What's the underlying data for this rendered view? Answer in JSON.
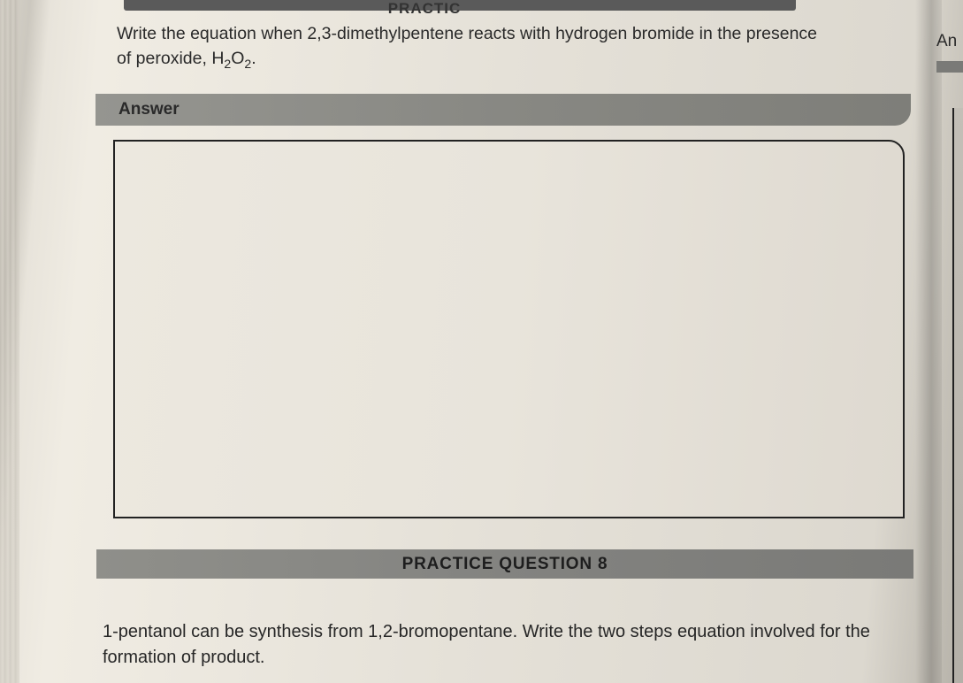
{
  "top_partial_label": "PRACTIC",
  "question7": {
    "line1": "Write the equation when 2,3-dimethylpentene reacts with hydrogen bromide in the presence",
    "line2_prefix": "of peroxide, H",
    "line2_sub1": "2",
    "line2_mid": "O",
    "line2_sub2": "2",
    "line2_suffix": "."
  },
  "answer_label": "Answer",
  "practice_bar_label": "PRACTICE QUESTION 8",
  "question8": {
    "text": "1-pentanol can be synthesis from 1,2-bromopentane. Write the two steps equation involved for the formation of product."
  },
  "right_cut_text": "An",
  "colors": {
    "bar_bg": "#888883",
    "border": "#222222",
    "text": "#2a2a2a",
    "page_bg": "#e5e1d8"
  },
  "typography": {
    "body_fontsize": 19.5,
    "label_fontsize": 19,
    "font_family": "Arial"
  }
}
